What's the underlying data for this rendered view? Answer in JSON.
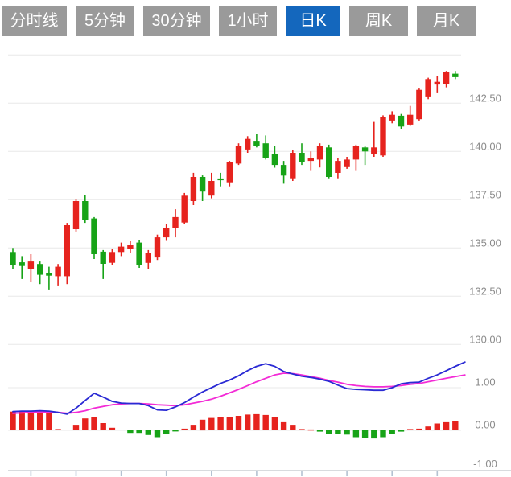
{
  "toolbar": {
    "tabs": [
      {
        "label": "分时线",
        "active": false
      },
      {
        "label": "5分钟",
        "active": false
      },
      {
        "label": "30分钟",
        "active": false
      },
      {
        "label": "1小时",
        "active": false
      },
      {
        "label": "日K",
        "active": true
      },
      {
        "label": "周K",
        "active": false
      },
      {
        "label": "月K",
        "active": false
      }
    ]
  },
  "colors": {
    "tab_inactive_bg": "#9a9a9a",
    "tab_active_bg": "#1467bd",
    "tab_text": "#ffffff",
    "up": "#e6231e",
    "down": "#17a317",
    "dif_line": "#2a2ad4",
    "dea_line": "#f32bd6",
    "gridline": "#e8e8e8",
    "axis_text": "#8c8c8c",
    "bottom_axis": "#cccfd4",
    "x_tick": "#b4c2d2"
  },
  "chart_data": {
    "type": "candlestick",
    "title": "",
    "grid": true,
    "legend_position": "none",
    "panes": [
      "price-candles",
      "macd-indicator"
    ],
    "price_axis": {
      "ticks": [
        "142.50",
        "140.00",
        "137.50",
        "135.00",
        "132.50",
        "130.00"
      ],
      "tick_values": [
        142.5,
        140.0,
        137.5,
        135.0,
        132.5,
        130.0
      ],
      "range": [
        129.8,
        145.0
      ]
    },
    "macd_axis": {
      "ticks": [
        "1.00",
        "0.00",
        "-1.00"
      ],
      "tick_values": [
        1.0,
        0.0,
        -1.0
      ],
      "range": [
        -1.1,
        1.9
      ]
    },
    "candles_ohlc": [
      [
        134.79,
        135.0,
        133.89,
        134.1
      ],
      [
        134.26,
        134.58,
        133.39,
        134.07
      ],
      [
        133.89,
        134.68,
        133.26,
        134.3
      ],
      [
        134.17,
        134.3,
        133.13,
        133.61
      ],
      [
        133.71,
        134.03,
        132.85,
        133.57
      ],
      [
        133.54,
        134.17,
        133.06,
        134.03
      ],
      [
        133.54,
        136.3,
        133.13,
        136.18
      ],
      [
        135.97,
        137.55,
        135.85,
        137.43
      ],
      [
        137.43,
        137.72,
        136.3,
        136.46
      ],
      [
        136.53,
        136.6,
        134.43,
        134.68
      ],
      [
        134.81,
        134.89,
        133.39,
        134.18
      ],
      [
        134.23,
        134.93,
        134.1,
        134.79
      ],
      [
        134.79,
        135.28,
        134.58,
        135.07
      ],
      [
        134.93,
        135.35,
        134.72,
        135.18
      ],
      [
        135.28,
        135.43,
        133.97,
        134.1
      ],
      [
        134.23,
        134.89,
        133.89,
        134.72
      ],
      [
        134.51,
        135.69,
        134.38,
        135.55
      ],
      [
        135.55,
        136.25,
        135.41,
        136.04
      ],
      [
        136.04,
        137.01,
        135.55,
        136.6
      ],
      [
        136.32,
        137.85,
        136.26,
        137.71
      ],
      [
        137.43,
        138.89,
        137.22,
        138.68
      ],
      [
        138.68,
        138.76,
        137.43,
        137.92
      ],
      [
        137.71,
        138.89,
        137.57,
        138.47
      ],
      [
        138.6,
        138.89,
        138.19,
        138.51
      ],
      [
        138.4,
        139.51,
        138.19,
        139.44
      ],
      [
        139.37,
        140.42,
        139.3,
        140.27
      ],
      [
        140.1,
        140.79,
        139.93,
        140.65
      ],
      [
        140.55,
        140.9,
        140.21,
        140.27
      ],
      [
        140.42,
        140.83,
        139.58,
        139.68
      ],
      [
        139.86,
        140.27,
        139.16,
        139.3
      ],
      [
        139.3,
        139.51,
        138.33,
        138.75
      ],
      [
        138.61,
        140.07,
        138.47,
        139.93
      ],
      [
        139.93,
        140.42,
        139.3,
        139.44
      ],
      [
        139.51,
        140.0,
        139.03,
        139.65
      ],
      [
        139.58,
        140.42,
        139.17,
        140.27
      ],
      [
        140.21,
        140.35,
        138.61,
        138.68
      ],
      [
        138.89,
        139.65,
        138.61,
        139.51
      ],
      [
        139.23,
        139.72,
        139.1,
        139.58
      ],
      [
        139.58,
        140.35,
        139.03,
        140.27
      ],
      [
        140.21,
        140.26,
        139.3,
        140.0
      ],
      [
        139.86,
        141.53,
        139.72,
        140.21
      ],
      [
        139.79,
        141.87,
        139.72,
        141.8
      ],
      [
        141.6,
        142.08,
        141.46,
        141.9
      ],
      [
        141.85,
        141.94,
        141.18,
        141.29
      ],
      [
        141.39,
        142.36,
        141.32,
        141.9
      ],
      [
        141.67,
        143.26,
        141.6,
        143.19
      ],
      [
        142.85,
        143.82,
        142.71,
        143.75
      ],
      [
        143.47,
        143.89,
        143.06,
        143.61
      ],
      [
        143.47,
        144.17,
        143.32,
        144.1
      ],
      [
        144.03,
        144.17,
        143.75,
        143.85
      ]
    ],
    "macd": {
      "dif": [
        0.44,
        0.45,
        0.45,
        0.46,
        0.45,
        0.42,
        0.38,
        0.52,
        0.7,
        0.87,
        0.78,
        0.68,
        0.64,
        0.63,
        0.63,
        0.58,
        0.48,
        0.47,
        0.55,
        0.65,
        0.78,
        0.9,
        1.0,
        1.1,
        1.18,
        1.28,
        1.4,
        1.5,
        1.56,
        1.5,
        1.38,
        1.32,
        1.27,
        1.24,
        1.2,
        1.15,
        1.06,
        0.98,
        0.96,
        0.95,
        0.94,
        0.94,
        1.0,
        1.09,
        1.12,
        1.13,
        1.22,
        1.3,
        1.4,
        1.5
      ],
      "dea": [
        0.4,
        0.41,
        0.42,
        0.43,
        0.43,
        0.42,
        0.4,
        0.42,
        0.46,
        0.52,
        0.56,
        0.6,
        0.62,
        0.63,
        0.63,
        0.62,
        0.6,
        0.59,
        0.58,
        0.6,
        0.64,
        0.68,
        0.73,
        0.8,
        0.88,
        0.96,
        1.05,
        1.14,
        1.22,
        1.3,
        1.34,
        1.33,
        1.3,
        1.26,
        1.22,
        1.17,
        1.13,
        1.08,
        1.05,
        1.03,
        1.02,
        1.02,
        1.03,
        1.05,
        1.08,
        1.1,
        1.14,
        1.18,
        1.22,
        1.26
      ],
      "histogram": [
        0.44,
        0.44,
        0.44,
        0.47,
        0.44,
        0.03,
        0.0,
        0.13,
        0.28,
        0.31,
        0.17,
        0.06,
        0.0,
        -0.06,
        -0.06,
        -0.11,
        -0.16,
        -0.09,
        -0.02,
        0.04,
        0.13,
        0.25,
        0.29,
        0.31,
        0.31,
        0.34,
        0.37,
        0.38,
        0.36,
        0.31,
        0.19,
        0.13,
        0.03,
        0.02,
        -0.03,
        -0.08,
        -0.09,
        -0.1,
        -0.16,
        -0.17,
        -0.19,
        -0.16,
        -0.09,
        -0.03,
        0.03,
        0.04,
        0.09,
        0.16,
        0.19,
        0.21
      ]
    }
  }
}
